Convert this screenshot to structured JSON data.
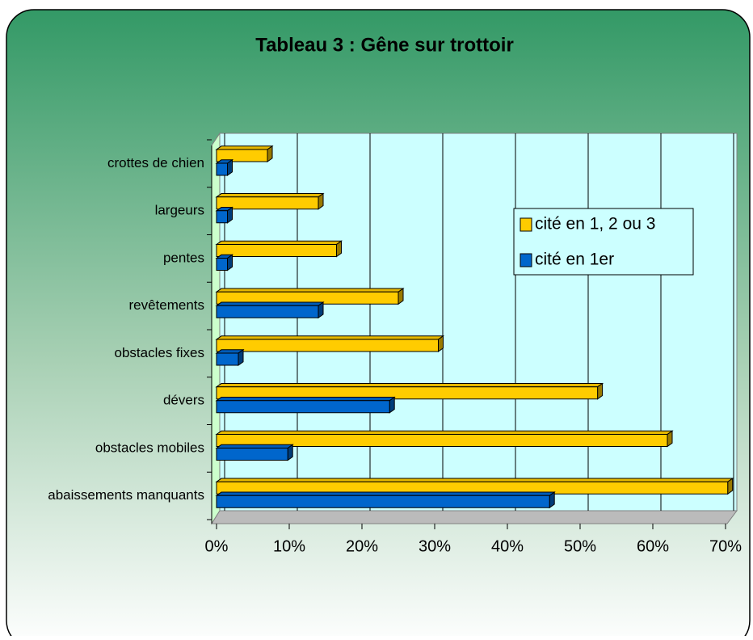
{
  "chart_data": {
    "type": "bar",
    "orientation": "horizontal",
    "title": "Tableau 3 : Gêne sur trottoir",
    "categories": [
      "crottes de chien",
      "largeurs",
      "pentes",
      "revêtements",
      "obstacles fixes",
      "dévers",
      "obstacles mobiles",
      "abaissements manquants"
    ],
    "series": [
      {
        "name": "cité en 1, 2 ou 3",
        "color": "#ffcc00",
        "values": [
          7,
          14,
          16.5,
          25,
          30.5,
          52.4,
          62,
          70.3
        ]
      },
      {
        "name": "cité en 1er",
        "color": "#0066cc",
        "values": [
          1.5,
          1.5,
          1.5,
          14,
          3,
          23.8,
          9.8,
          45.8
        ]
      }
    ],
    "xlim": [
      0,
      70
    ],
    "xticks": [
      {
        "value": 0,
        "label": "0%"
      },
      {
        "value": 10,
        "label": "10%"
      },
      {
        "value": 20,
        "label": "20%"
      },
      {
        "value": 30,
        "label": "30%"
      },
      {
        "value": 40,
        "label": "40%"
      },
      {
        "value": 50,
        "label": "50%"
      },
      {
        "value": 60,
        "label": "60%"
      },
      {
        "value": 70,
        "label": "70%"
      }
    ],
    "grid": true
  }
}
